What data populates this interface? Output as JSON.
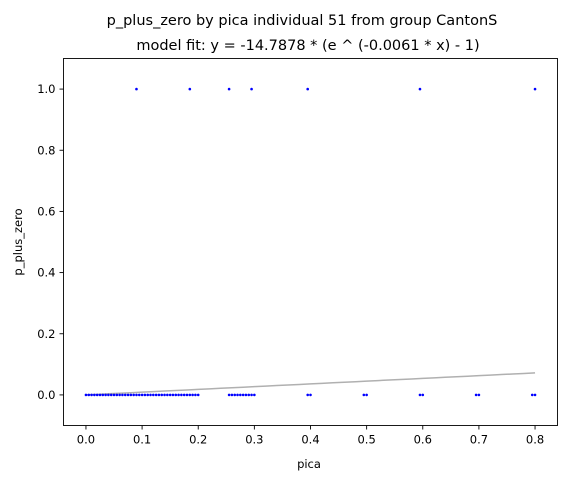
{
  "chart_data": {
    "type": "scatter",
    "title": "p_plus_zero by pica individual 51 from group CantonS",
    "subtitle": "model fit: y = -14.7878 * (e ^ (-0.0061 * x) - 1)",
    "xlabel": "pica",
    "ylabel": "p_plus_zero",
    "xlim": [
      -0.04,
      0.84
    ],
    "ylim": [
      -0.1,
      1.1
    ],
    "x_ticks": [
      "0.0",
      "0.1",
      "0.2",
      "0.3",
      "0.4",
      "0.5",
      "0.6",
      "0.7",
      "0.8"
    ],
    "y_ticks": [
      "0.0",
      "0.2",
      "0.4",
      "0.6",
      "0.8",
      "1.0"
    ],
    "grid": false,
    "marker_color": "#0000ff",
    "fit_color": "#b0b0b0",
    "series": [
      {
        "values_y1": [
          0.09,
          0.185,
          0.255,
          0.295,
          0.395,
          0.595,
          0.8
        ],
        "values_y0_points": [
          0.0,
          0.005,
          0.01,
          0.015,
          0.02,
          0.025,
          0.03,
          0.035,
          0.04,
          0.045,
          0.05,
          0.055,
          0.06,
          0.065,
          0.07,
          0.075,
          0.08,
          0.085,
          0.09,
          0.095,
          0.1,
          0.105,
          0.11,
          0.115,
          0.12,
          0.125,
          0.13,
          0.135,
          0.14,
          0.145,
          0.15,
          0.155,
          0.16,
          0.165,
          0.17,
          0.175,
          0.18,
          0.185,
          0.19,
          0.195,
          0.2,
          0.255,
          0.26,
          0.265,
          0.27,
          0.275,
          0.28,
          0.285,
          0.29,
          0.295,
          0.3,
          0.395,
          0.4,
          0.495,
          0.5,
          0.595,
          0.6,
          0.695,
          0.7,
          0.795,
          0.8
        ]
      }
    ],
    "fit": {
      "a": -14.7878,
      "b": -0.0061,
      "x_range": [
        0.0,
        0.8
      ]
    }
  }
}
